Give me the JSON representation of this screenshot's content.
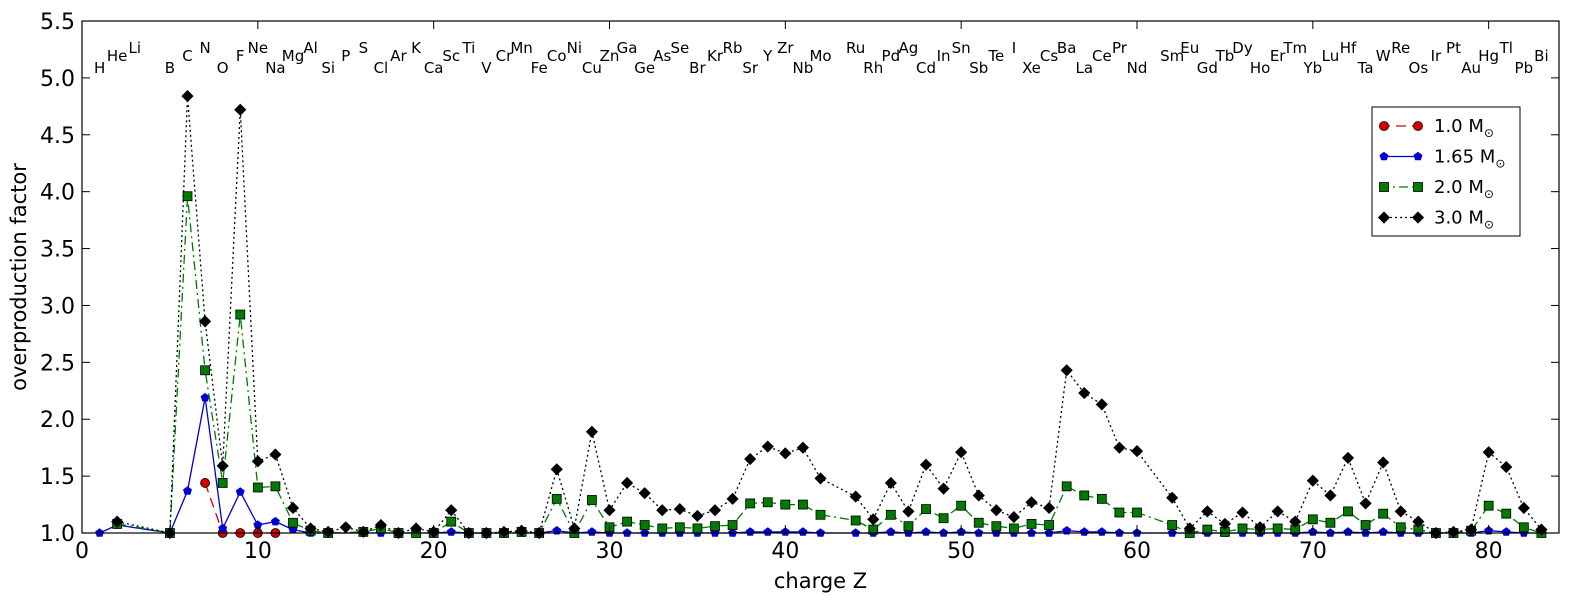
{
  "chart_data": {
    "type": "line",
    "xlabel": "charge Z",
    "ylabel": "overproduction factor",
    "xlim": [
      0,
      84
    ],
    "ylim": [
      1.0,
      5.5
    ],
    "xticks": [
      0,
      10,
      20,
      30,
      40,
      50,
      60,
      70,
      80
    ],
    "yticks": [
      1.0,
      1.5,
      2.0,
      2.5,
      3.0,
      3.5,
      4.0,
      4.5,
      5.0,
      5.5
    ],
    "ytick_labels": [
      "1.0",
      "1.5",
      "2.0",
      "2.5",
      "3.0",
      "3.5",
      "4.0",
      "4.5",
      "5.0",
      "5.5"
    ],
    "legend_position": "upper right",
    "elements": [
      {
        "z": 1,
        "symbol": "H"
      },
      {
        "z": 2,
        "symbol": "He"
      },
      {
        "z": 3,
        "symbol": "Li"
      },
      {
        "z": 5,
        "symbol": "B"
      },
      {
        "z": 6,
        "symbol": "C"
      },
      {
        "z": 7,
        "symbol": "N"
      },
      {
        "z": 8,
        "symbol": "O"
      },
      {
        "z": 9,
        "symbol": "F"
      },
      {
        "z": 10,
        "symbol": "Ne"
      },
      {
        "z": 11,
        "symbol": "Na"
      },
      {
        "z": 12,
        "symbol": "Mg"
      },
      {
        "z": 13,
        "symbol": "Al"
      },
      {
        "z": 14,
        "symbol": "Si"
      },
      {
        "z": 15,
        "symbol": "P"
      },
      {
        "z": 16,
        "symbol": "S"
      },
      {
        "z": 17,
        "symbol": "Cl"
      },
      {
        "z": 18,
        "symbol": "Ar"
      },
      {
        "z": 19,
        "symbol": "K"
      },
      {
        "z": 20,
        "symbol": "Ca"
      },
      {
        "z": 21,
        "symbol": "Sc"
      },
      {
        "z": 22,
        "symbol": "Ti"
      },
      {
        "z": 23,
        "symbol": "V"
      },
      {
        "z": 24,
        "symbol": "Cr"
      },
      {
        "z": 25,
        "symbol": "Mn"
      },
      {
        "z": 26,
        "symbol": "Fe"
      },
      {
        "z": 27,
        "symbol": "Co"
      },
      {
        "z": 28,
        "symbol": "Ni"
      },
      {
        "z": 29,
        "symbol": "Cu"
      },
      {
        "z": 30,
        "symbol": "Zn"
      },
      {
        "z": 31,
        "symbol": "Ga"
      },
      {
        "z": 32,
        "symbol": "Ge"
      },
      {
        "z": 33,
        "symbol": "As"
      },
      {
        "z": 34,
        "symbol": "Se"
      },
      {
        "z": 35,
        "symbol": "Br"
      },
      {
        "z": 36,
        "symbol": "Kr"
      },
      {
        "z": 37,
        "symbol": "Rb"
      },
      {
        "z": 38,
        "symbol": "Sr"
      },
      {
        "z": 39,
        "symbol": "Y"
      },
      {
        "z": 40,
        "symbol": "Zr"
      },
      {
        "z": 41,
        "symbol": "Nb"
      },
      {
        "z": 42,
        "symbol": "Mo"
      },
      {
        "z": 44,
        "symbol": "Ru"
      },
      {
        "z": 45,
        "symbol": "Rh"
      },
      {
        "z": 46,
        "symbol": "Pd"
      },
      {
        "z": 47,
        "symbol": "Ag"
      },
      {
        "z": 48,
        "symbol": "Cd"
      },
      {
        "z": 49,
        "symbol": "In"
      },
      {
        "z": 50,
        "symbol": "Sn"
      },
      {
        "z": 51,
        "symbol": "Sb"
      },
      {
        "z": 52,
        "symbol": "Te"
      },
      {
        "z": 53,
        "symbol": "I"
      },
      {
        "z": 54,
        "symbol": "Xe"
      },
      {
        "z": 55,
        "symbol": "Cs"
      },
      {
        "z": 56,
        "symbol": "Ba"
      },
      {
        "z": 57,
        "symbol": "La"
      },
      {
        "z": 58,
        "symbol": "Ce"
      },
      {
        "z": 59,
        "symbol": "Pr"
      },
      {
        "z": 60,
        "symbol": "Nd"
      },
      {
        "z": 62,
        "symbol": "Sm"
      },
      {
        "z": 63,
        "symbol": "Eu"
      },
      {
        "z": 64,
        "symbol": "Gd"
      },
      {
        "z": 65,
        "symbol": "Tb"
      },
      {
        "z": 66,
        "symbol": "Dy"
      },
      {
        "z": 67,
        "symbol": "Ho"
      },
      {
        "z": 68,
        "symbol": "Er"
      },
      {
        "z": 69,
        "symbol": "Tm"
      },
      {
        "z": 70,
        "symbol": "Yb"
      },
      {
        "z": 71,
        "symbol": "Lu"
      },
      {
        "z": 72,
        "symbol": "Hf"
      },
      {
        "z": 73,
        "symbol": "Ta"
      },
      {
        "z": 74,
        "symbol": "W"
      },
      {
        "z": 75,
        "symbol": "Re"
      },
      {
        "z": 76,
        "symbol": "Os"
      },
      {
        "z": 77,
        "symbol": "Ir"
      },
      {
        "z": 78,
        "symbol": "Pt"
      },
      {
        "z": 79,
        "symbol": "Au"
      },
      {
        "z": 80,
        "symbol": "Hg"
      },
      {
        "z": 81,
        "symbol": "Tl"
      },
      {
        "z": 82,
        "symbol": "Pb"
      },
      {
        "z": 83,
        "symbol": "Bi"
      }
    ],
    "series": [
      {
        "name": "1.0 M",
        "name_subscript": "⊙",
        "color": "#d40000",
        "marker": "circle",
        "dash": "dashed",
        "points": [
          [
            7,
            1.44
          ],
          [
            8,
            1.0
          ],
          [
            9,
            1.0
          ],
          [
            10,
            1.0
          ],
          [
            11,
            1.0
          ]
        ]
      },
      {
        "name": "1.65 M",
        "name_subscript": "⊙",
        "color": "#0000d0",
        "marker": "pentagon",
        "dash": "solid",
        "points": [
          [
            1,
            1.0
          ],
          [
            2,
            1.07
          ],
          [
            5,
            1.0
          ],
          [
            6,
            1.37
          ],
          [
            7,
            2.19
          ],
          [
            8,
            1.04
          ],
          [
            9,
            1.36
          ],
          [
            10,
            1.07
          ],
          [
            11,
            1.1
          ],
          [
            12,
            1.03
          ],
          [
            13,
            1.0
          ],
          [
            14,
            1.0
          ],
          [
            16,
            1.0
          ],
          [
            17,
            1.0
          ],
          [
            18,
            1.0
          ],
          [
            19,
            1.0
          ],
          [
            20,
            1.0
          ],
          [
            21,
            1.01
          ],
          [
            22,
            1.0
          ],
          [
            23,
            1.0
          ],
          [
            24,
            1.0
          ],
          [
            25,
            1.0
          ],
          [
            26,
            1.0
          ],
          [
            27,
            1.02
          ],
          [
            28,
            1.0
          ],
          [
            29,
            1.01
          ],
          [
            30,
            1.0
          ],
          [
            31,
            1.0
          ],
          [
            32,
            1.0
          ],
          [
            33,
            1.0
          ],
          [
            34,
            1.0
          ],
          [
            35,
            1.0
          ],
          [
            36,
            1.0
          ],
          [
            37,
            1.0
          ],
          [
            38,
            1.01
          ],
          [
            39,
            1.01
          ],
          [
            40,
            1.01
          ],
          [
            41,
            1.01
          ],
          [
            42,
            1.0
          ],
          [
            44,
            1.0
          ],
          [
            45,
            1.0
          ],
          [
            46,
            1.01
          ],
          [
            47,
            1.0
          ],
          [
            48,
            1.01
          ],
          [
            49,
            1.0
          ],
          [
            50,
            1.01
          ],
          [
            51,
            1.0
          ],
          [
            52,
            1.0
          ],
          [
            53,
            1.0
          ],
          [
            54,
            1.0
          ],
          [
            55,
            1.0
          ],
          [
            56,
            1.02
          ],
          [
            57,
            1.01
          ],
          [
            58,
            1.01
          ],
          [
            59,
            1.0
          ],
          [
            60,
            1.0
          ],
          [
            62,
            1.0
          ],
          [
            63,
            1.0
          ],
          [
            64,
            1.0
          ],
          [
            65,
            1.0
          ],
          [
            66,
            1.0
          ],
          [
            67,
            1.0
          ],
          [
            68,
            1.0
          ],
          [
            69,
            1.0
          ],
          [
            70,
            1.01
          ],
          [
            71,
            1.0
          ],
          [
            72,
            1.01
          ],
          [
            73,
            1.0
          ],
          [
            74,
            1.01
          ],
          [
            75,
            1.0
          ],
          [
            76,
            1.0
          ],
          [
            77,
            1.0
          ],
          [
            78,
            1.0
          ],
          [
            79,
            1.0
          ],
          [
            80,
            1.02
          ],
          [
            81,
            1.01
          ],
          [
            82,
            1.0
          ],
          [
            83,
            1.0
          ]
        ]
      },
      {
        "name": "2.0 M",
        "name_subscript": "⊙",
        "color": "#007a00",
        "marker": "square",
        "dash": "dashdot",
        "points": [
          [
            2,
            1.08
          ],
          [
            5,
            1.0
          ],
          [
            6,
            3.96
          ],
          [
            7,
            2.43
          ],
          [
            8,
            1.44
          ],
          [
            9,
            2.92
          ],
          [
            10,
            1.4
          ],
          [
            11,
            1.41
          ],
          [
            12,
            1.09
          ],
          [
            13,
            1.02
          ],
          [
            14,
            1.0
          ],
          [
            16,
            1.01
          ],
          [
            17,
            1.04
          ],
          [
            18,
            1.0
          ],
          [
            19,
            1.0
          ],
          [
            20,
            1.0
          ],
          [
            21,
            1.1
          ],
          [
            22,
            1.0
          ],
          [
            23,
            1.0
          ],
          [
            24,
            1.0
          ],
          [
            25,
            1.01
          ],
          [
            26,
            1.0
          ],
          [
            27,
            1.3
          ],
          [
            28,
            1.0
          ],
          [
            29,
            1.29
          ],
          [
            30,
            1.05
          ],
          [
            31,
            1.1
          ],
          [
            32,
            1.07
          ],
          [
            33,
            1.04
          ],
          [
            34,
            1.05
          ],
          [
            35,
            1.04
          ],
          [
            36,
            1.06
          ],
          [
            37,
            1.07
          ],
          [
            38,
            1.26
          ],
          [
            39,
            1.27
          ],
          [
            40,
            1.25
          ],
          [
            41,
            1.25
          ],
          [
            42,
            1.16
          ],
          [
            44,
            1.11
          ],
          [
            45,
            1.03
          ],
          [
            46,
            1.16
          ],
          [
            47,
            1.06
          ],
          [
            48,
            1.21
          ],
          [
            49,
            1.13
          ],
          [
            50,
            1.24
          ],
          [
            51,
            1.09
          ],
          [
            52,
            1.06
          ],
          [
            53,
            1.04
          ],
          [
            54,
            1.08
          ],
          [
            55,
            1.07
          ],
          [
            56,
            1.41
          ],
          [
            57,
            1.33
          ],
          [
            58,
            1.3
          ],
          [
            59,
            1.18
          ],
          [
            60,
            1.18
          ],
          [
            62,
            1.07
          ],
          [
            63,
            1.0
          ],
          [
            64,
            1.03
          ],
          [
            65,
            1.01
          ],
          [
            66,
            1.04
          ],
          [
            67,
            1.03
          ],
          [
            68,
            1.04
          ],
          [
            69,
            1.03
          ],
          [
            70,
            1.12
          ],
          [
            71,
            1.09
          ],
          [
            72,
            1.19
          ],
          [
            73,
            1.07
          ],
          [
            74,
            1.17
          ],
          [
            75,
            1.05
          ],
          [
            76,
            1.03
          ],
          [
            77,
            1.0
          ],
          [
            78,
            1.0
          ],
          [
            79,
            1.02
          ],
          [
            80,
            1.24
          ],
          [
            81,
            1.17
          ],
          [
            82,
            1.05
          ],
          [
            83,
            1.0
          ]
        ]
      },
      {
        "name": "3.0 M",
        "name_subscript": "⊙",
        "color": "#000000",
        "marker": "diamond",
        "dash": "dotted",
        "points": [
          [
            2,
            1.1
          ],
          [
            5,
            1.0
          ],
          [
            6,
            4.84
          ],
          [
            7,
            2.86
          ],
          [
            8,
            1.59
          ],
          [
            9,
            4.72
          ],
          [
            10,
            1.63
          ],
          [
            11,
            1.69
          ],
          [
            12,
            1.22
          ],
          [
            13,
            1.04
          ],
          [
            14,
            1.01
          ],
          [
            15,
            1.05
          ],
          [
            16,
            1.01
          ],
          [
            17,
            1.07
          ],
          [
            18,
            1.0
          ],
          [
            19,
            1.04
          ],
          [
            20,
            1.01
          ],
          [
            21,
            1.2
          ],
          [
            22,
            1.0
          ],
          [
            23,
            1.0
          ],
          [
            24,
            1.01
          ],
          [
            25,
            1.02
          ],
          [
            26,
            1.0
          ],
          [
            27,
            1.56
          ],
          [
            28,
            1.04
          ],
          [
            29,
            1.89
          ],
          [
            30,
            1.2
          ],
          [
            31,
            1.44
          ],
          [
            32,
            1.35
          ],
          [
            33,
            1.2
          ],
          [
            34,
            1.21
          ],
          [
            35,
            1.15
          ],
          [
            36,
            1.2
          ],
          [
            37,
            1.3
          ],
          [
            38,
            1.65
          ],
          [
            39,
            1.76
          ],
          [
            40,
            1.7
          ],
          [
            41,
            1.75
          ],
          [
            42,
            1.48
          ],
          [
            44,
            1.32
          ],
          [
            45,
            1.12
          ],
          [
            46,
            1.44
          ],
          [
            47,
            1.19
          ],
          [
            48,
            1.6
          ],
          [
            49,
            1.39
          ],
          [
            50,
            1.71
          ],
          [
            51,
            1.33
          ],
          [
            52,
            1.2
          ],
          [
            53,
            1.14
          ],
          [
            54,
            1.27
          ],
          [
            55,
            1.22
          ],
          [
            56,
            2.43
          ],
          [
            57,
            2.23
          ],
          [
            58,
            2.13
          ],
          [
            59,
            1.75
          ],
          [
            60,
            1.72
          ],
          [
            62,
            1.31
          ],
          [
            63,
            1.04
          ],
          [
            64,
            1.19
          ],
          [
            65,
            1.08
          ],
          [
            66,
            1.18
          ],
          [
            67,
            1.05
          ],
          [
            68,
            1.19
          ],
          [
            69,
            1.1
          ],
          [
            70,
            1.46
          ],
          [
            71,
            1.33
          ],
          [
            72,
            1.66
          ],
          [
            73,
            1.26
          ],
          [
            74,
            1.62
          ],
          [
            75,
            1.19
          ],
          [
            76,
            1.1
          ],
          [
            77,
            1.0
          ],
          [
            78,
            1.01
          ],
          [
            79,
            1.03
          ],
          [
            80,
            1.71
          ],
          [
            81,
            1.58
          ],
          [
            82,
            1.22
          ],
          [
            83,
            1.03
          ]
        ]
      }
    ]
  }
}
